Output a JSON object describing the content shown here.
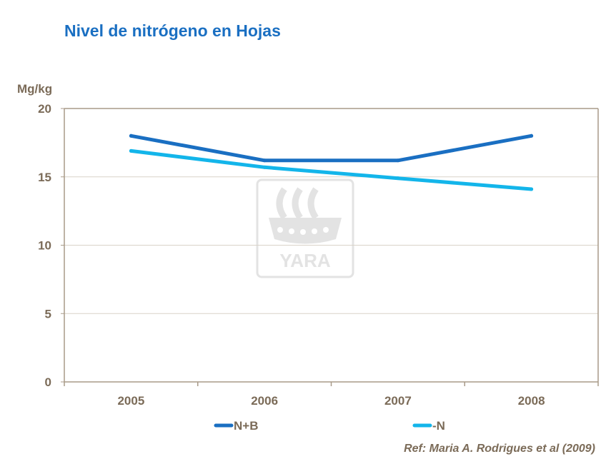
{
  "title": "Nivel de nitrógeno en Hojas",
  "reference": "Ref: Maria A. Rodrigues et al (2009)",
  "watermark": "YARA",
  "chart_data": {
    "type": "line",
    "title": "Nivel de nitrógeno en Hojas",
    "ylabel": "Mg/kg",
    "xlabel": "",
    "ylim": [
      0,
      20
    ],
    "yticks": [
      0,
      5,
      10,
      15,
      20
    ],
    "categories": [
      "2005",
      "2006",
      "2007",
      "2008"
    ],
    "grid": true,
    "legend_position": "bottom",
    "series": [
      {
        "name": "N+B",
        "values": [
          18.0,
          16.2,
          16.2,
          18.0
        ],
        "color": "#1a6fc2"
      },
      {
        "name": "-N",
        "values": [
          16.9,
          15.7,
          14.9,
          14.1
        ],
        "color": "#13b5ea"
      }
    ],
    "colors": {
      "axis": "#a89a88",
      "grid": "#d9d2c8",
      "text": "#7b6b58",
      "watermark": "#e3e3e3"
    }
  }
}
